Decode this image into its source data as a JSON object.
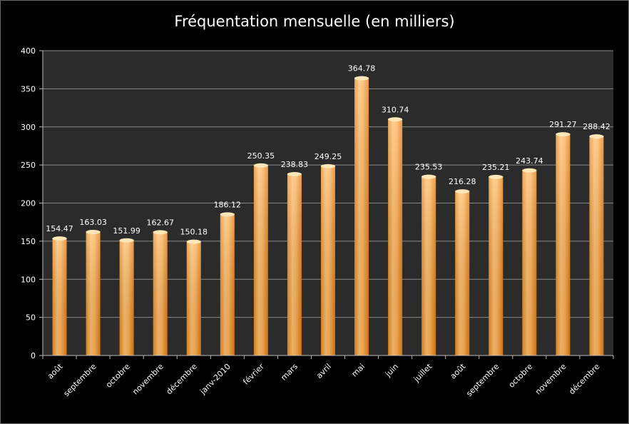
{
  "chart_data": {
    "type": "bar",
    "title": "Fréquentation mensuelle (en milliers)",
    "categories": [
      "août",
      "septembre",
      "octobre",
      "novembre",
      "décembre",
      "janv-2010",
      "février",
      "mars",
      "avril",
      "mai",
      "juin",
      "juillet",
      "août",
      "septembre",
      "octobre",
      "novembre",
      "décembre"
    ],
    "values": [
      154.47,
      163.03,
      151.99,
      162.67,
      150.18,
      186.12,
      250.35,
      238.83,
      249.25,
      364.78,
      310.74,
      235.53,
      216.28,
      235.21,
      243.74,
      291.27,
      288.42
    ],
    "value_labels": [
      "154.47",
      "163.03",
      "151.99",
      "162.67",
      "150.18",
      "186.12",
      "250.35",
      "238.83",
      "249.25",
      "364.78",
      "310.74",
      "235.53",
      "216.28",
      "235.21",
      "243.74",
      "291.27",
      "288.42"
    ],
    "ylim": [
      0,
      400
    ],
    "yticks": [
      0,
      50,
      100,
      150,
      200,
      250,
      300,
      350,
      400
    ],
    "grid": true,
    "colors": {
      "bar": "#f7a542",
      "bar_light": "#ffd9a0",
      "bar_dark": "#e57f10",
      "plot_bg": "#2b2b2b",
      "grid": "#8a8a8a"
    }
  }
}
